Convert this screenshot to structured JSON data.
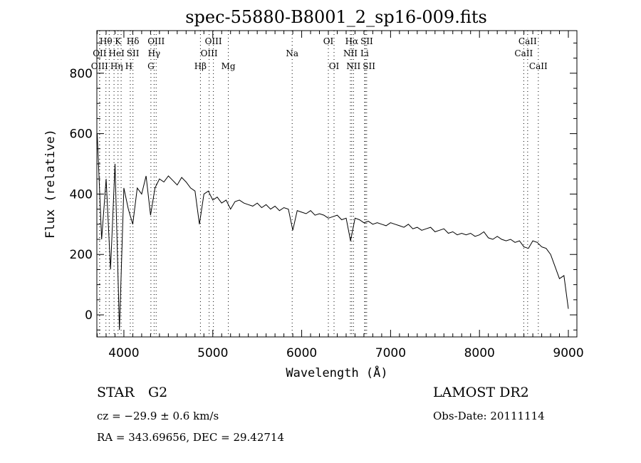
{
  "chart_data": {
    "type": "line",
    "title": "spec-55880-B8001_2_sp16-009.fits",
    "xlabel": "Wavelength (Å)",
    "ylabel": "Flux (relative)",
    "xlim": [
      3696,
      9096
    ],
    "ylim": [
      -73,
      941
    ],
    "xticks": [
      4000,
      5000,
      6000,
      7000,
      8000,
      9000
    ],
    "yticks": [
      0,
      200,
      400,
      600,
      800
    ],
    "grid": false,
    "series": [
      {
        "name": "spectrum",
        "x_start": 3700,
        "x_step": 50,
        "values": [
          600,
          250,
          450,
          150,
          500,
          -50,
          420,
          350,
          300,
          420,
          400,
          460,
          330,
          420,
          450,
          440,
          460,
          445,
          430,
          455,
          440,
          420,
          410,
          300,
          400,
          410,
          380,
          390,
          370,
          380,
          350,
          375,
          380,
          370,
          365,
          360,
          370,
          355,
          365,
          350,
          360,
          345,
          355,
          350,
          280,
          345,
          340,
          335,
          345,
          330,
          335,
          330,
          320,
          325,
          330,
          315,
          320,
          245,
          320,
          315,
          305,
          310,
          300,
          305,
          300,
          295,
          305,
          300,
          295,
          290,
          300,
          285,
          290,
          280,
          285,
          290,
          275,
          280,
          285,
          270,
          275,
          265,
          270,
          265,
          270,
          260,
          265,
          275,
          255,
          250,
          260,
          250,
          245,
          250,
          240,
          245,
          225,
          220,
          245,
          240,
          225,
          220,
          200,
          160,
          120,
          130,
          20
        ]
      }
    ],
    "line_markers": [
      {
        "label": "Hθ",
        "wavelength": 3798,
        "row": 0
      },
      {
        "label": "K",
        "wavelength": 3934,
        "row": 0
      },
      {
        "label": "Hδ",
        "wavelength": 4102,
        "row": 0
      },
      {
        "label": "OIII",
        "wavelength": 4363,
        "row": 0
      },
      {
        "label": "OIII",
        "wavelength": 5007,
        "row": 0
      },
      {
        "label": "OI",
        "wavelength": 6300,
        "row": 0
      },
      {
        "label": "Hα",
        "wavelength": 6563,
        "row": 0
      },
      {
        "label": "SII",
        "wavelength": 6716,
        "row": 0
      },
      {
        "label": "CaII",
        "wavelength": 8542,
        "row": 0
      },
      {
        "label": "OII",
        "wavelength": 3727,
        "row": 1
      },
      {
        "label": "HeI",
        "wavelength": 3889,
        "row": 1
      },
      {
        "label": "SII",
        "wavelength": 4072,
        "row": 1
      },
      {
        "label": "Hγ",
        "wavelength": 4340,
        "row": 1
      },
      {
        "label": "OIII",
        "wavelength": 4959,
        "row": 1
      },
      {
        "label": "Na",
        "wavelength": 5893,
        "row": 1
      },
      {
        "label": "NII",
        "wavelength": 6548,
        "row": 1
      },
      {
        "label": "Li",
        "wavelength": 6708,
        "row": 1
      },
      {
        "label": "CaII",
        "wavelength": 8498,
        "row": 1
      },
      {
        "label": "OIII",
        "wavelength": 3727,
        "row": 2
      },
      {
        "label": "Hη",
        "wavelength": 3835,
        "row": 2
      },
      {
        "label": "H",
        "wavelength": 3969,
        "row": 2
      },
      {
        "label": "G",
        "wavelength": 4304,
        "row": 2
      },
      {
        "label": "Hβ",
        "wavelength": 4861,
        "row": 2
      },
      {
        "label": "Mg",
        "wavelength": 5175,
        "row": 2
      },
      {
        "label": "OI",
        "wavelength": 6364,
        "row": 2
      },
      {
        "label": "NII",
        "wavelength": 6583,
        "row": 2
      },
      {
        "label": "SII",
        "wavelength": 6731,
        "row": 2
      },
      {
        "label": "CaII",
        "wavelength": 8662,
        "row": 2
      }
    ]
  },
  "info": {
    "object_class": "STAR",
    "subclass": "G2",
    "survey": "LAMOST DR2",
    "redshift": "cz = −29.9 ± 0.6 km/s",
    "obs_date": "Obs-Date: 20111114",
    "coords": "RA = 343.69656, DEC =  29.42714"
  }
}
